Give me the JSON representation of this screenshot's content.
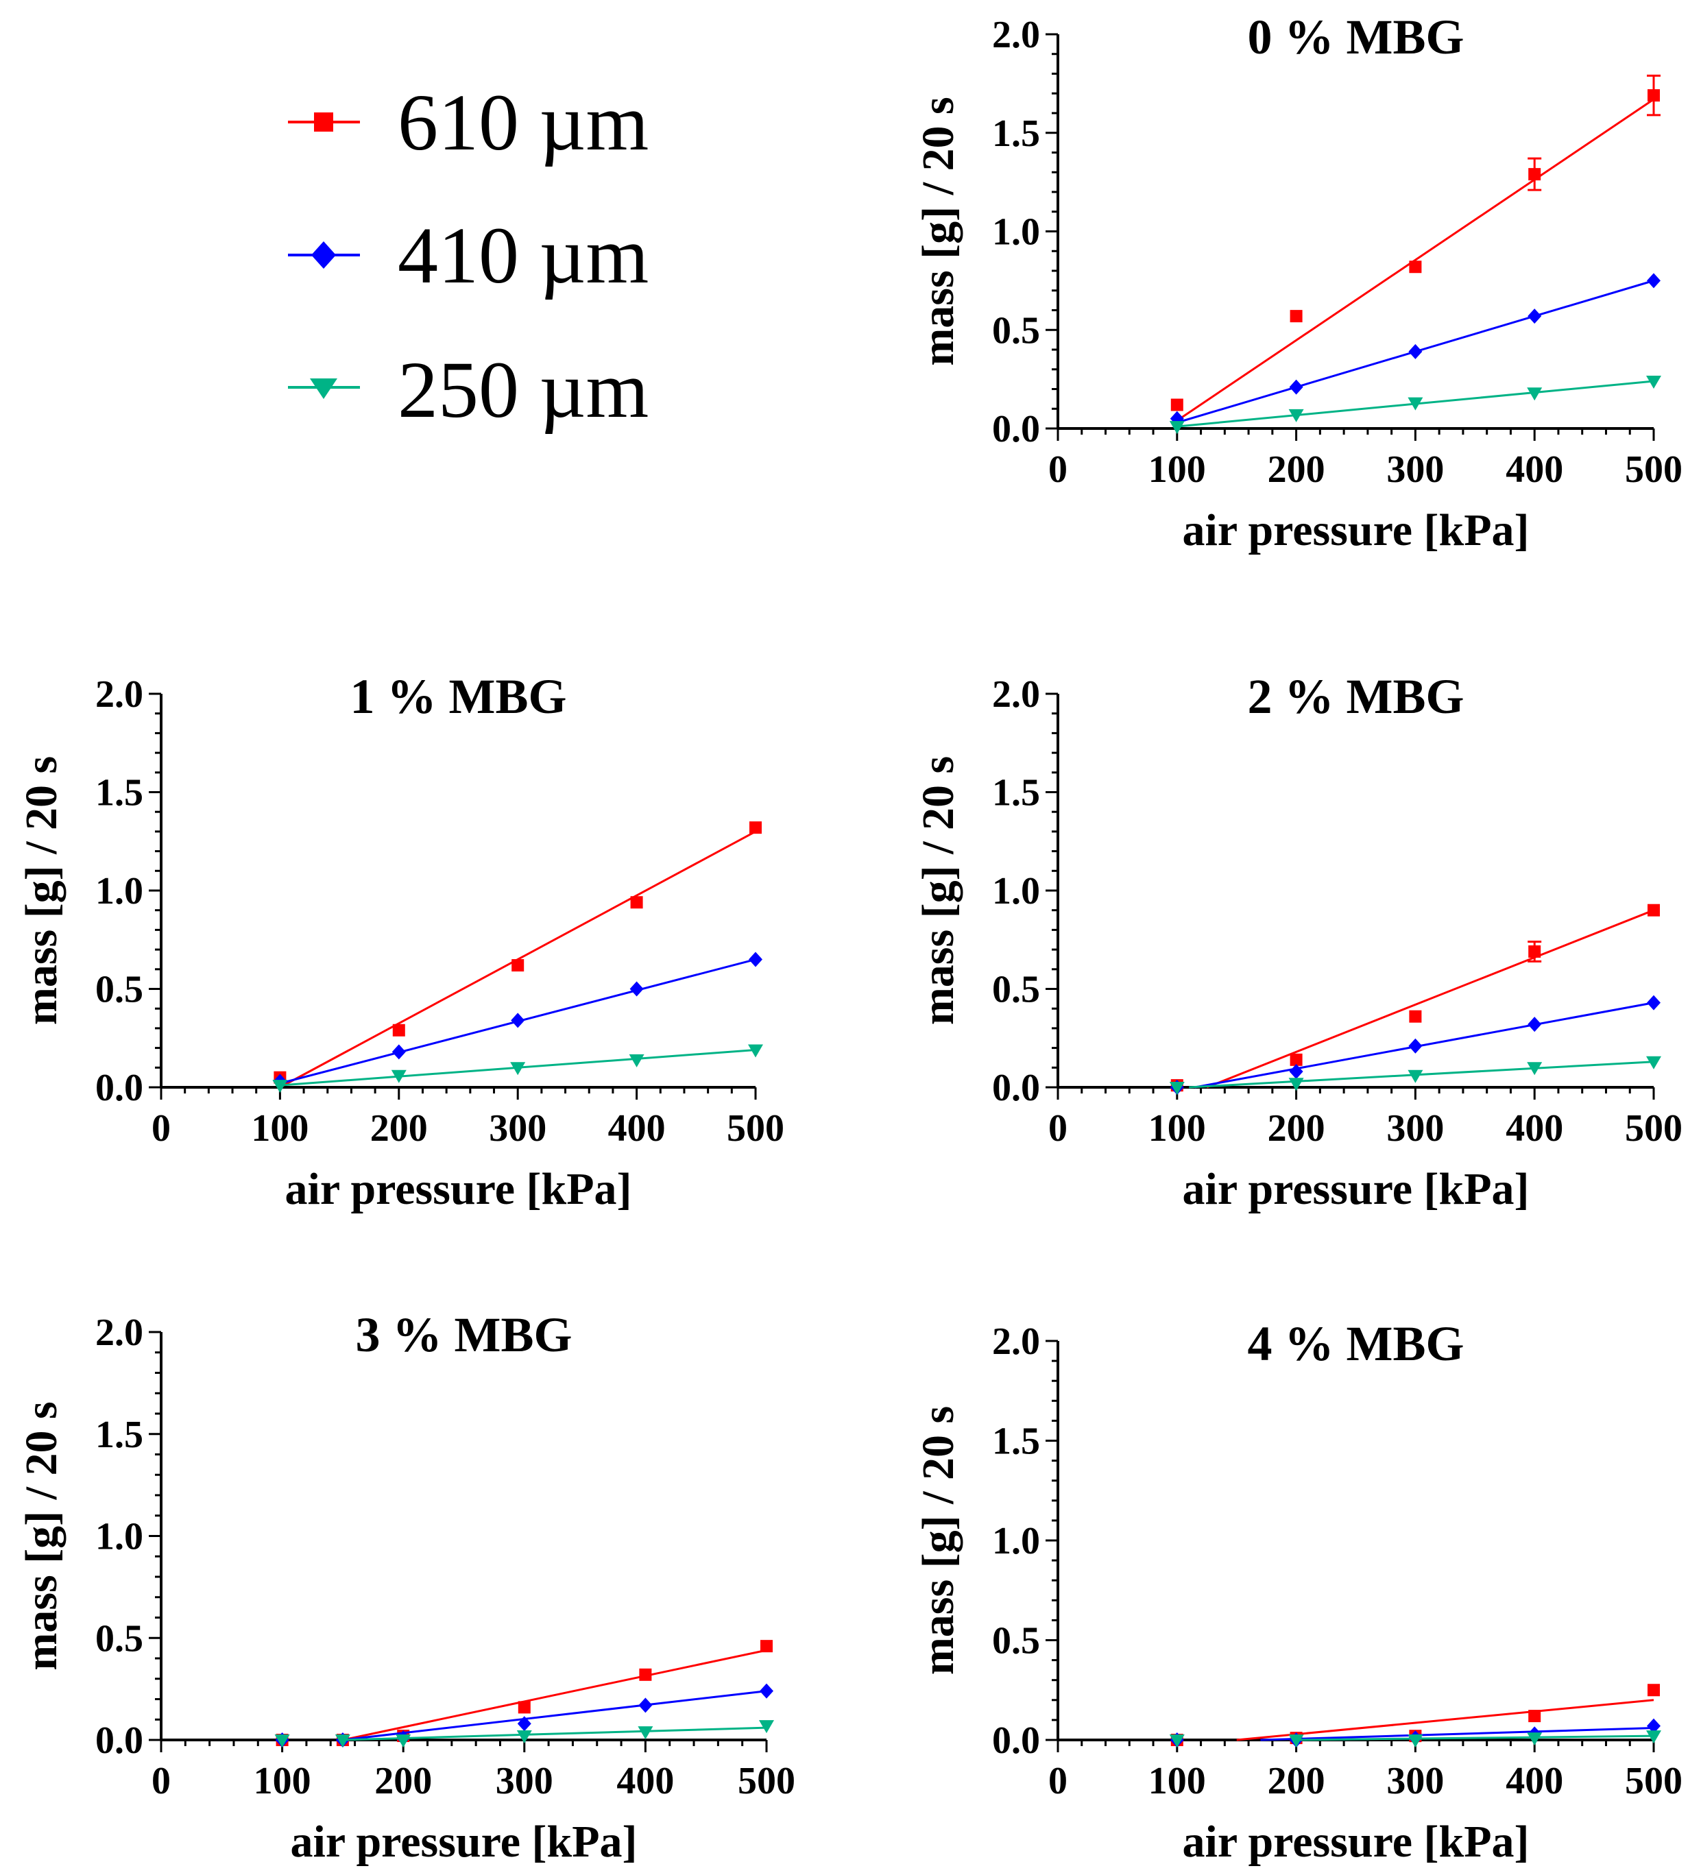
{
  "legend": {
    "entries": [
      {
        "label": "610 µm",
        "color": "#ff0000",
        "marker": "square"
      },
      {
        "label": "410 µm",
        "color": "#0000ff",
        "marker": "diamond"
      },
      {
        "label": "250 µm",
        "color": "#00b386",
        "marker": "triangle-down"
      }
    ]
  },
  "chart_data": [
    {
      "type": "scatter",
      "title": "0 % MBG",
      "xlabel": "air pressure [kPa]",
      "ylabel": "mass [g] / 20 s",
      "xlim": [
        0,
        500
      ],
      "ylim": [
        0,
        2.0
      ],
      "xticks": [
        "0",
        "100",
        "200",
        "300",
        "400",
        "500"
      ],
      "yticks": [
        "0.0",
        "0.5",
        "1.0",
        "1.5",
        "2.0"
      ],
      "series": [
        {
          "name": "610 µm",
          "x": [
            100,
            200,
            300,
            400,
            500
          ],
          "values": [
            0.12,
            0.57,
            0.82,
            1.29,
            1.69
          ],
          "error": [
            0,
            0,
            0,
            0.08,
            0.1
          ],
          "fit": [
            [
              100,
              0.04
            ],
            [
              500,
              1.67
            ]
          ]
        },
        {
          "name": "410 µm",
          "x": [
            100,
            200,
            300,
            400,
            500
          ],
          "values": [
            0.05,
            0.21,
            0.39,
            0.57,
            0.75
          ],
          "error": [
            0,
            0,
            0,
            0,
            0
          ],
          "fit": [
            [
              100,
              0.03
            ],
            [
              500,
              0.75
            ]
          ]
        },
        {
          "name": "250 µm",
          "x": [
            100,
            200,
            300,
            400,
            500
          ],
          "values": [
            0.01,
            0.07,
            0.13,
            0.18,
            0.24
          ],
          "error": [
            0,
            0,
            0,
            0,
            0
          ],
          "fit": [
            [
              100,
              0.01
            ],
            [
              500,
              0.24
            ]
          ]
        }
      ]
    },
    {
      "type": "scatter",
      "title": "1 % MBG",
      "xlabel": "air pressure [kPa]",
      "ylabel": "mass [g] / 20 s",
      "xlim": [
        0,
        500
      ],
      "ylim": [
        0,
        2.0
      ],
      "xticks": [
        "0",
        "100",
        "200",
        "300",
        "400",
        "500"
      ],
      "yticks": [
        "0.0",
        "0.5",
        "1.0",
        "1.5",
        "2.0"
      ],
      "series": [
        {
          "name": "610 µm",
          "x": [
            100,
            200,
            300,
            400,
            500
          ],
          "values": [
            0.05,
            0.29,
            0.62,
            0.94,
            1.32
          ],
          "error": [
            0,
            0,
            0,
            0,
            0
          ],
          "fit": [
            [
              100,
              0.0
            ],
            [
              500,
              1.3
            ]
          ]
        },
        {
          "name": "410 µm",
          "x": [
            100,
            200,
            300,
            400,
            500
          ],
          "values": [
            0.03,
            0.18,
            0.34,
            0.5,
            0.65
          ],
          "error": [
            0,
            0,
            0,
            0,
            0
          ],
          "fit": [
            [
              100,
              0.02
            ],
            [
              500,
              0.65
            ]
          ]
        },
        {
          "name": "250 µm",
          "x": [
            100,
            200,
            300,
            400,
            500
          ],
          "values": [
            0.01,
            0.06,
            0.1,
            0.14,
            0.19
          ],
          "error": [
            0,
            0,
            0,
            0,
            0
          ],
          "fit": [
            [
              100,
              0.01
            ],
            [
              500,
              0.19
            ]
          ]
        }
      ]
    },
    {
      "type": "scatter",
      "title": "2 % MBG",
      "xlabel": "air pressure [kPa]",
      "ylabel": "mass [g] / 20 s",
      "xlim": [
        0,
        500
      ],
      "ylim": [
        0,
        2.0
      ],
      "xticks": [
        "0",
        "100",
        "200",
        "300",
        "400",
        "500"
      ],
      "yticks": [
        "0.0",
        "0.5",
        "1.0",
        "1.5",
        "2.0"
      ],
      "series": [
        {
          "name": "610 µm",
          "x": [
            100,
            200,
            300,
            400,
            500
          ],
          "values": [
            0.01,
            0.14,
            0.36,
            0.69,
            0.9
          ],
          "error": [
            0,
            0,
            0,
            0.05,
            0
          ],
          "fit": [
            [
              125,
              0.0
            ],
            [
              500,
              0.9
            ]
          ]
        },
        {
          "name": "410 µm",
          "x": [
            100,
            200,
            300,
            400,
            500
          ],
          "values": [
            0.0,
            0.08,
            0.21,
            0.32,
            0.43
          ],
          "error": [
            0,
            0,
            0,
            0,
            0
          ],
          "fit": [
            [
              115,
              0.0
            ],
            [
              500,
              0.43
            ]
          ]
        },
        {
          "name": "250 µm",
          "x": [
            100,
            200,
            300,
            400,
            500
          ],
          "values": [
            0.0,
            0.02,
            0.06,
            0.1,
            0.13
          ],
          "error": [
            0,
            0,
            0,
            0,
            0
          ],
          "fit": [
            [
              110,
              0.0
            ],
            [
              500,
              0.13
            ]
          ]
        }
      ]
    },
    {
      "type": "scatter",
      "title": "3 % MBG",
      "xlabel": "air pressure [kPa]",
      "ylabel": "mass [g] / 20 s",
      "xlim": [
        0,
        500
      ],
      "ylim": [
        0,
        2.0
      ],
      "xticks": [
        "0",
        "100",
        "200",
        "300",
        "400",
        "500"
      ],
      "yticks": [
        "0.0",
        "0.5",
        "1.0",
        "1.5",
        "2.0"
      ],
      "series": [
        {
          "name": "610 µm",
          "x": [
            100,
            150,
            200,
            300,
            400,
            500
          ],
          "values": [
            0.0,
            0.0,
            0.02,
            0.16,
            0.32,
            0.46
          ],
          "error": [
            0,
            0,
            0,
            0,
            0,
            0
          ],
          "fit": [
            [
              150,
              0.0
            ],
            [
              500,
              0.44
            ]
          ]
        },
        {
          "name": "410 µm",
          "x": [
            100,
            150,
            200,
            300,
            400,
            500
          ],
          "values": [
            0.0,
            0.0,
            0.01,
            0.08,
            0.17,
            0.24
          ],
          "error": [
            0,
            0,
            0,
            0,
            0,
            0
          ],
          "fit": [
            [
              150,
              0.0
            ],
            [
              500,
              0.24
            ]
          ]
        },
        {
          "name": "250 µm",
          "x": [
            100,
            150,
            200,
            300,
            400,
            500
          ],
          "values": [
            0.0,
            0.0,
            0.0,
            0.02,
            0.04,
            0.07
          ],
          "error": [
            0,
            0,
            0,
            0,
            0,
            0
          ],
          "fit": [
            [
              150,
              0.0
            ],
            [
              500,
              0.06
            ]
          ]
        }
      ]
    },
    {
      "type": "scatter",
      "title": "4 % MBG",
      "xlabel": "air pressure [kPa]",
      "ylabel": "mass [g] / 20 s",
      "xlim": [
        0,
        500
      ],
      "ylim": [
        0,
        2.0
      ],
      "xticks": [
        "0",
        "100",
        "200",
        "300",
        "400",
        "500"
      ],
      "yticks": [
        "0.0",
        "0.5",
        "1.0",
        "1.5",
        "2.0"
      ],
      "series": [
        {
          "name": "610 µm",
          "x": [
            100,
            200,
            300,
            400,
            500
          ],
          "values": [
            0.0,
            0.01,
            0.02,
            0.12,
            0.25
          ],
          "error": [
            0,
            0,
            0,
            0,
            0
          ],
          "fit": [
            [
              150,
              0.0
            ],
            [
              500,
              0.2
            ]
          ]
        },
        {
          "name": "410 µm",
          "x": [
            100,
            200,
            300,
            400,
            500
          ],
          "values": [
            0.0,
            0.0,
            0.01,
            0.03,
            0.07
          ],
          "error": [
            0,
            0,
            0,
            0,
            0
          ],
          "fit": [
            [
              170,
              0.0
            ],
            [
              500,
              0.06
            ]
          ]
        },
        {
          "name": "250 µm",
          "x": [
            100,
            200,
            300,
            400,
            500
          ],
          "values": [
            0.0,
            0.0,
            0.0,
            0.01,
            0.02
          ],
          "error": [
            0,
            0,
            0,
            0,
            0
          ],
          "fit": [
            [
              200,
              0.0
            ],
            [
              500,
              0.02
            ]
          ]
        }
      ]
    }
  ]
}
